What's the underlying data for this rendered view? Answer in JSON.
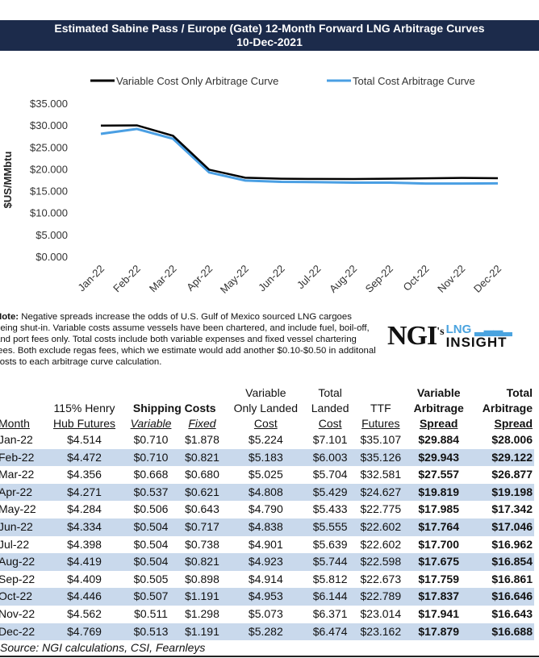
{
  "chart_data": {
    "type": "line",
    "title": "Estimated Sabine Pass / Europe (Gate) 12-Month Forward LNG Arbitrage Curves",
    "subtitle": "10-Dec-2021",
    "ylabel": "$US/MMbtu",
    "xlabel": "",
    "ylim": [
      0,
      35
    ],
    "yticks": [
      "$0.000",
      "$5.000",
      "$10.000",
      "$15.000",
      "$20.000",
      "$25.000",
      "$30.000",
      "$35.000"
    ],
    "categories": [
      "Jan-22",
      "Feb-22",
      "Mar-22",
      "Apr-22",
      "May-22",
      "Jun-22",
      "Jul-22",
      "Aug-22",
      "Sep-22",
      "Oct-22",
      "Nov-22",
      "Dec-22"
    ],
    "legend_position": "top",
    "grid": false,
    "series": [
      {
        "name": "Variable Cost Only Arbitrage Curve",
        "color": "#000000",
        "values": [
          29.884,
          29.943,
          27.557,
          19.819,
          17.985,
          17.764,
          17.7,
          17.675,
          17.759,
          17.837,
          17.941,
          17.879
        ]
      },
      {
        "name": "Total Cost Arbitrage Curve",
        "color": "#4a9fe3",
        "values": [
          28.006,
          29.122,
          26.877,
          19.198,
          17.342,
          17.046,
          16.962,
          16.854,
          16.861,
          16.646,
          16.643,
          16.688
        ]
      }
    ]
  },
  "note": {
    "label": "Note:",
    "text": " Negative spreads increase the odds of U.S. Gulf of Mexico sourced LNG cargoes being shut-in.  Variable costs assume vessels have been chartered, and include fuel, boil-off, and port fees only.  Total costs include both variable expenses and fixed vessel chartering fees. Both exclude regas fees, which we estimate would add another $0.10-$0.50 in additonal costs to each arbitrage curve calculation."
  },
  "logo": {
    "main": "NGI",
    "possessive": "'s",
    "line1": "LNG",
    "line2": "INSIGHT"
  },
  "table": {
    "group_headers": {
      "henry1": "115% Henry",
      "shipping": "Shipping Costs",
      "vol1": "Variable",
      "vol2": "Only Landed",
      "tl1": "Total",
      "tl2": "Landed",
      "ttf1": "TTF",
      "vs1": "Variable",
      "vs2": "Arbitrage",
      "ts1": "Total",
      "ts2": "Arbitrage"
    },
    "columns": [
      "Month",
      "Hub Futures",
      "Variable",
      "Fixed",
      "Cost",
      "Cost",
      "Futures",
      "Spread",
      "Spread"
    ],
    "rows": [
      [
        "Jan-22",
        "$4.514",
        "$0.710",
        "$1.878",
        "$5.224",
        "$7.101",
        "$35.107",
        "$29.884",
        "$28.006"
      ],
      [
        "Feb-22",
        "$4.472",
        "$0.710",
        "$0.821",
        "$5.183",
        "$6.003",
        "$35.126",
        "$29.943",
        "$29.122"
      ],
      [
        "Mar-22",
        "$4.356",
        "$0.668",
        "$0.680",
        "$5.025",
        "$5.704",
        "$32.581",
        "$27.557",
        "$26.877"
      ],
      [
        "Apr-22",
        "$4.271",
        "$0.537",
        "$0.621",
        "$4.808",
        "$5.429",
        "$24.627",
        "$19.819",
        "$19.198"
      ],
      [
        "May-22",
        "$4.284",
        "$0.506",
        "$0.643",
        "$4.790",
        "$5.433",
        "$22.775",
        "$17.985",
        "$17.342"
      ],
      [
        "Jun-22",
        "$4.334",
        "$0.504",
        "$0.717",
        "$4.838",
        "$5.555",
        "$22.602",
        "$17.764",
        "$17.046"
      ],
      [
        "Jul-22",
        "$4.398",
        "$0.504",
        "$0.738",
        "$4.901",
        "$5.639",
        "$22.602",
        "$17.700",
        "$16.962"
      ],
      [
        "Aug-22",
        "$4.419",
        "$0.504",
        "$0.821",
        "$4.923",
        "$5.744",
        "$22.598",
        "$17.675",
        "$16.854"
      ],
      [
        "Sep-22",
        "$4.409",
        "$0.505",
        "$0.898",
        "$4.914",
        "$5.812",
        "$22.673",
        "$17.759",
        "$16.861"
      ],
      [
        "Oct-22",
        "$4.446",
        "$0.507",
        "$1.191",
        "$4.953",
        "$6.144",
        "$22.789",
        "$17.837",
        "$16.646"
      ],
      [
        "Nov-22",
        "$4.562",
        "$0.511",
        "$1.298",
        "$5.073",
        "$6.371",
        "$23.014",
        "$17.941",
        "$16.643"
      ],
      [
        "Dec-22",
        "$4.769",
        "$0.513",
        "$1.191",
        "$5.282",
        "$6.474",
        "$23.162",
        "$17.879",
        "$16.688"
      ]
    ]
  },
  "source": "Source: NGI calculations, CSI, Fearnleys"
}
